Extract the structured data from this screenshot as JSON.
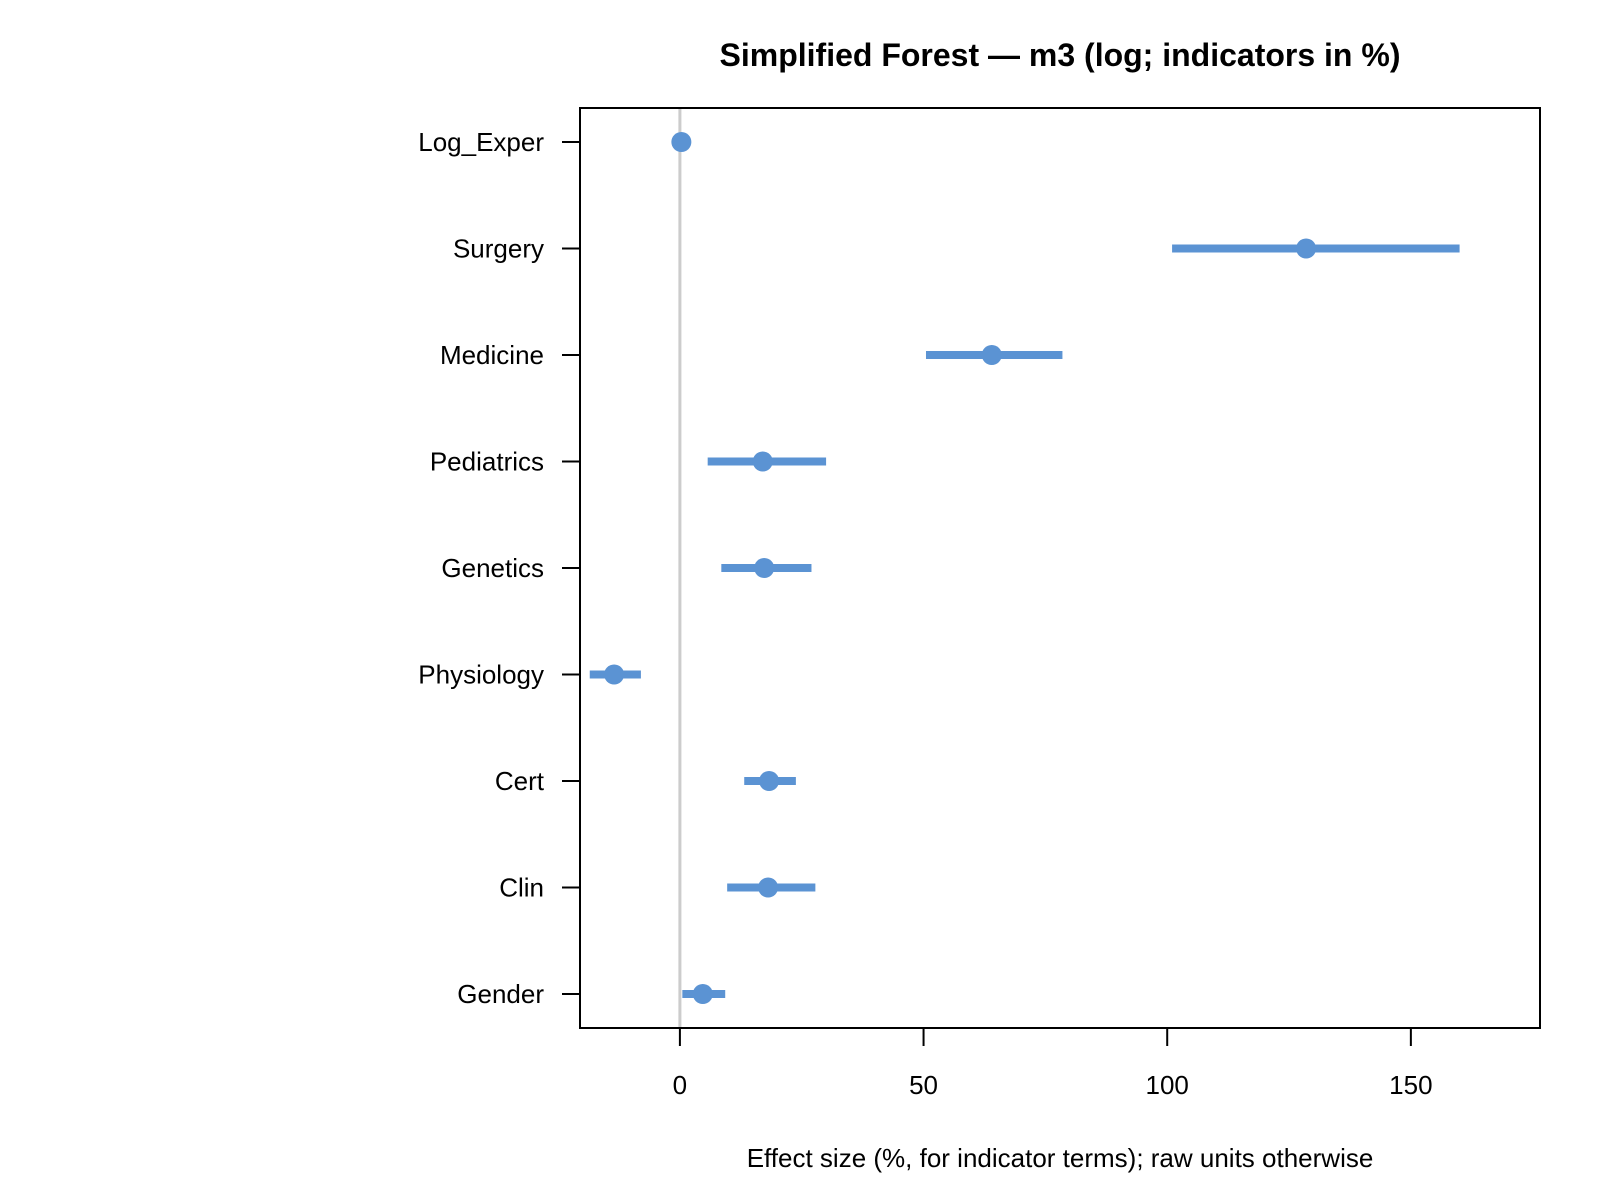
{
  "chart_data": {
    "type": "forest",
    "title": "Simplified Forest — m3 (log; indicators in %)",
    "xlabel": "Effect size (%, for indicator terms); raw units otherwise",
    "ylabel": "",
    "xlim": [
      -20.5,
      176.5
    ],
    "xticks": [
      0,
      50,
      100,
      150
    ],
    "reference_line": 0,
    "grid": false,
    "categories": [
      "Log_Exper",
      "Surgery",
      "Medicine",
      "Pediatrics",
      "Genetics",
      "Physiology",
      "Cert",
      "Clin",
      "Gender"
    ],
    "estimate": [
      0.3,
      128.5,
      64,
      17,
      17.3,
      -13.5,
      18.3,
      18.1,
      4.7
    ],
    "lower": [
      0.3,
      101,
      50.5,
      5.7,
      8.5,
      -18.5,
      13.2,
      9.7,
      0.5
    ],
    "upper": [
      0.3,
      160,
      78.5,
      30,
      27,
      -8,
      23.8,
      27.8,
      9.3
    ],
    "color": "#5b93d3",
    "reference_color": "#cccccc"
  }
}
